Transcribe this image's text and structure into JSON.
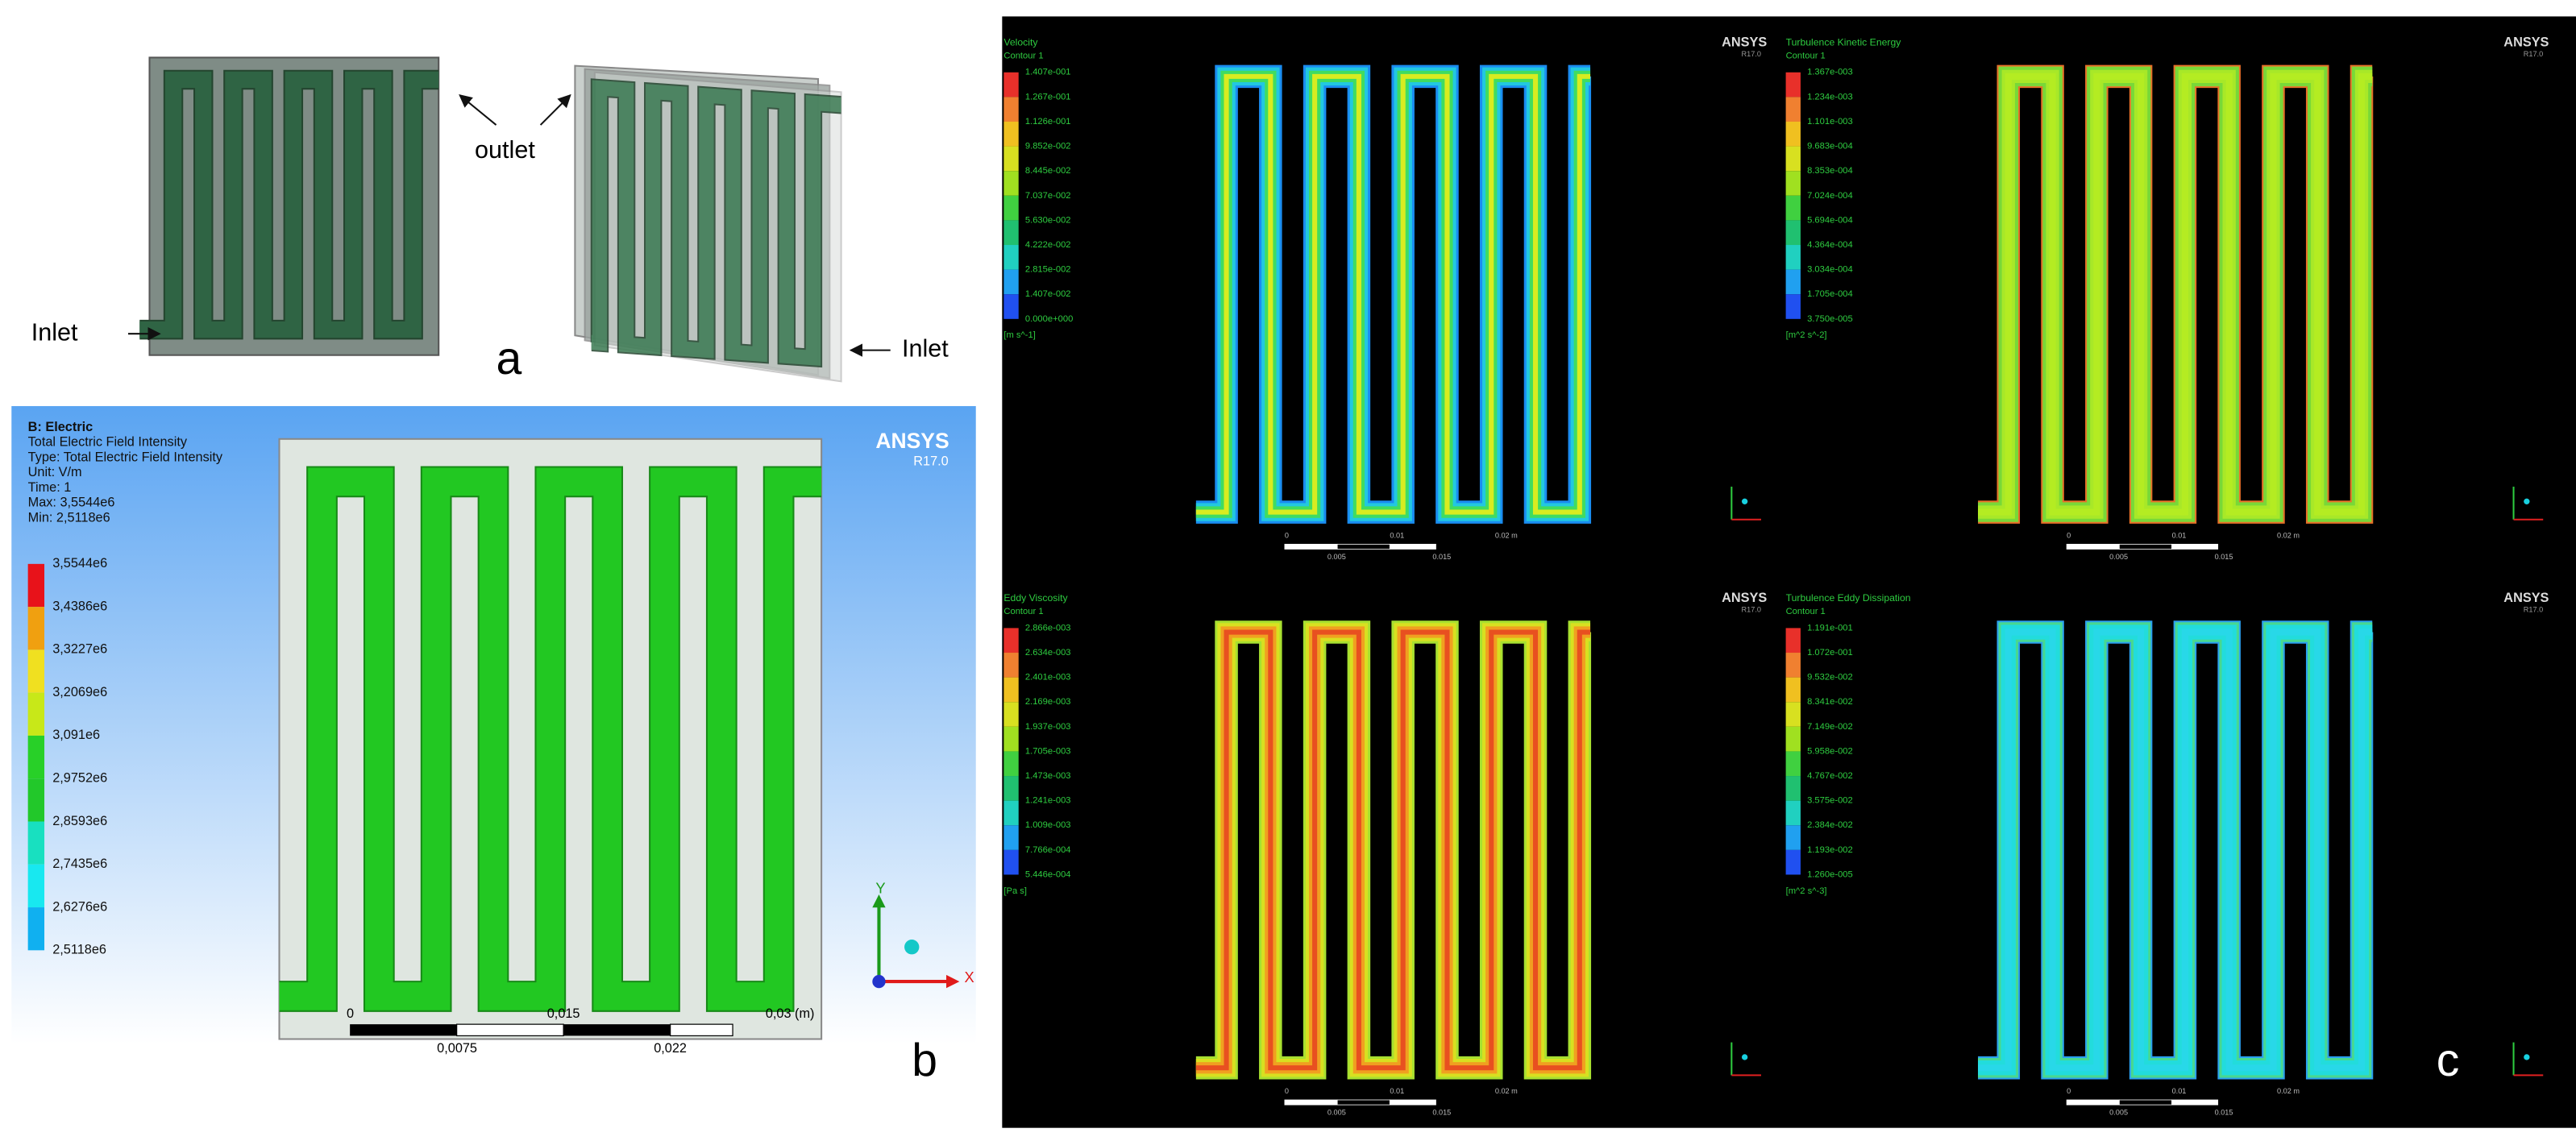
{
  "panel_a": {
    "label": "a",
    "outlet": "outlet",
    "inlet_left": "Inlet",
    "inlet_right": "Inlet"
  },
  "panel_b": {
    "label": "b",
    "header": [
      "B: Electric",
      "Total Electric Field Intensity",
      "Type: Total Electric Field Intensity",
      "Unit: V/m",
      "Time: 1",
      "Max: 3,5544e6",
      "Min: 2,5118e6"
    ],
    "logo": "ANSYS",
    "version": "R17.0",
    "legend": [
      "3,5544e6",
      "3,4386e6",
      "3,3227e6",
      "3,2069e6",
      "3,091e6",
      "2,9752e6",
      "2,8593e6",
      "2,7435e6",
      "2,6276e6",
      "2,5118e6"
    ],
    "scale_top": [
      "0",
      "0,015",
      "0,03 (m)"
    ],
    "scale_bottom": [
      "0,0075",
      "0,022"
    ],
    "axis_y": "Y",
    "axis_x": "X"
  },
  "panel_c": {
    "label": "c",
    "plots": [
      {
        "title": "Velocity",
        "subtitle": "Contour 1",
        "legend": [
          "1.407e-001",
          "1.267e-001",
          "1.126e-001",
          "9.852e-002",
          "8.445e-002",
          "7.037e-002",
          "5.630e-002",
          "4.222e-002",
          "2.815e-002",
          "1.407e-002",
          "0.000e+000"
        ],
        "unit": "[m s^-1]",
        "logo": "ANSYS",
        "version": "R17.0",
        "scale_top": [
          "0",
          "0.01",
          "0.02 m"
        ],
        "scale_bottom": [
          "0.005",
          "0.015"
        ]
      },
      {
        "title": "Turbulence Kinetic Energy",
        "subtitle": "Contour 1",
        "legend": [
          "1.367e-003",
          "1.234e-003",
          "1.101e-003",
          "9.683e-004",
          "8.353e-004",
          "7.024e-004",
          "5.694e-004",
          "4.364e-004",
          "3.034e-004",
          "1.705e-004",
          "3.750e-005"
        ],
        "unit": "[m^2 s^-2]",
        "logo": "ANSYS",
        "version": "R17.0",
        "scale_top": [
          "0",
          "0.01",
          "0.02 m"
        ],
        "scale_bottom": [
          "0.005",
          "0.015"
        ]
      },
      {
        "title": "Eddy Viscosity",
        "subtitle": "Contour 1",
        "legend": [
          "2.866e-003",
          "2.634e-003",
          "2.401e-003",
          "2.169e-003",
          "1.937e-003",
          "1.705e-003",
          "1.473e-003",
          "1.241e-003",
          "1.009e-003",
          "7.766e-004",
          "5.446e-004"
        ],
        "unit": "[Pa s]",
        "logo": "ANSYS",
        "version": "R17.0",
        "scale_top": [
          "0",
          "0.01",
          "0.02 m"
        ],
        "scale_bottom": [
          "0.005",
          "0.015"
        ]
      },
      {
        "title": "Turbulence Eddy Dissipation",
        "subtitle": "Contour 1",
        "legend": [
          "1.191e-001",
          "1.072e-001",
          "9.532e-002",
          "8.341e-002",
          "7.149e-002",
          "5.958e-002",
          "4.767e-002",
          "3.575e-002",
          "2.384e-002",
          "1.193e-002",
          "1.260e-005"
        ],
        "unit": "[m^2 s^-3]",
        "logo": "ANSYS",
        "version": "R17.0",
        "scale_top": [
          "0",
          "0.01",
          "0.02 m"
        ],
        "scale_bottom": [
          "0.005",
          "0.015"
        ]
      }
    ]
  }
}
